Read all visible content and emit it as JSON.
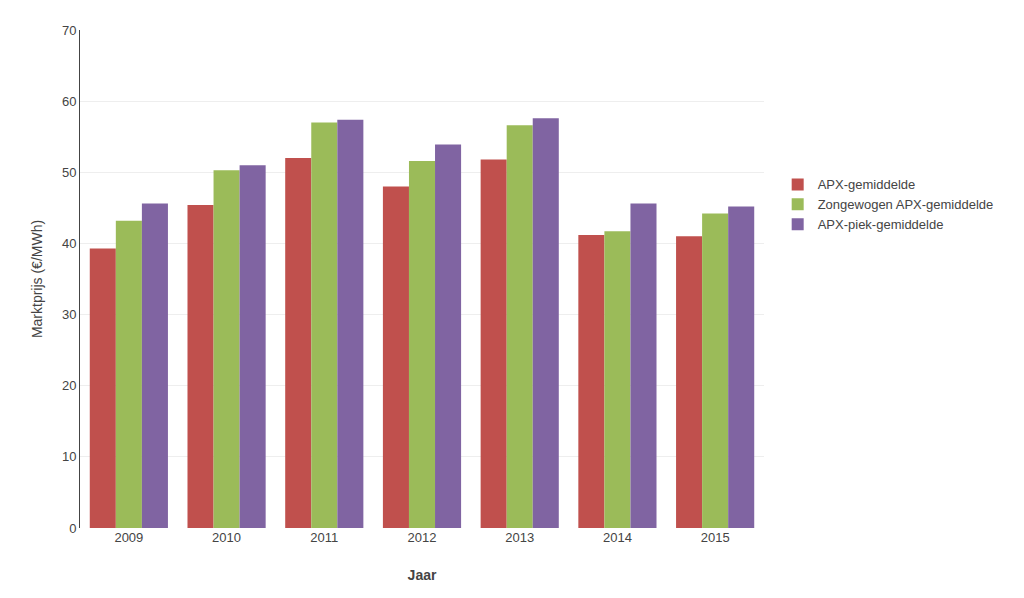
{
  "chart_data": {
    "type": "bar",
    "categories": [
      "2009",
      "2010",
      "2011",
      "2012",
      "2013",
      "2014",
      "2015"
    ],
    "series": [
      {
        "name": "APX-gemiddelde",
        "color": "#c0504d",
        "values": [
          39.3,
          45.4,
          52.0,
          48.0,
          51.8,
          41.2,
          41.0
        ]
      },
      {
        "name": "Zongewogen APX-gemiddelde",
        "color": "#9bbb59",
        "values": [
          43.2,
          50.3,
          57.0,
          51.6,
          56.6,
          41.7,
          44.2
        ]
      },
      {
        "name": "APX-piek-gemiddelde",
        "color": "#8064a2",
        "values": [
          45.6,
          51.0,
          57.4,
          53.9,
          57.6,
          45.6,
          45.2
        ]
      }
    ],
    "xlabel": "Jaar",
    "ylabel": "Marktprijs (€/MWh)",
    "ylim": [
      0,
      70
    ],
    "yticks": [
      0,
      10,
      20,
      30,
      40,
      50,
      60,
      70
    ],
    "grid": true,
    "legend": "right"
  }
}
